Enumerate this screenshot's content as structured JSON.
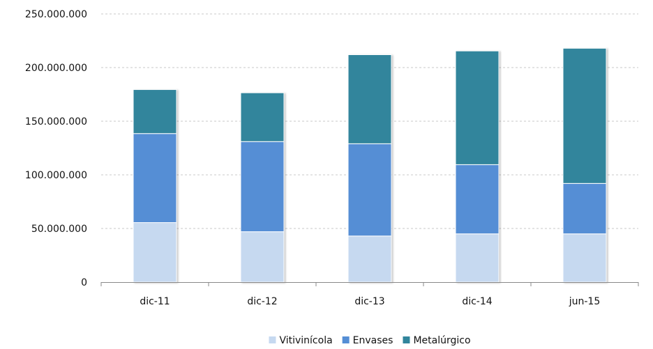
{
  "chart_data": {
    "type": "bar",
    "stacked": true,
    "categories": [
      "dic-11",
      "dic-12",
      "dic-13",
      "dic-14",
      "jun-15"
    ],
    "series": [
      {
        "name": "Vitivinícola",
        "color": "#c6d9f0",
        "values": [
          55500000,
          47000000,
          43000000,
          45000000,
          45000000
        ]
      },
      {
        "name": "Envases",
        "color": "#558ed5",
        "values": [
          83000000,
          84000000,
          86000000,
          64500000,
          47000000
        ]
      },
      {
        "name": "Metalúrgico",
        "color": "#31859c",
        "values": [
          41000000,
          45500000,
          83000000,
          106000000,
          126000000
        ]
      }
    ],
    "ylim": [
      0,
      250000000
    ],
    "yticks": [
      0,
      50000000,
      100000000,
      150000000,
      200000000,
      250000000
    ],
    "ytick_labels": [
      "0",
      "50.000.000",
      "100.000.000",
      "150.000.000",
      "200.000.000",
      "250.000.000"
    ],
    "grid": true,
    "legend_position": "bottom"
  }
}
